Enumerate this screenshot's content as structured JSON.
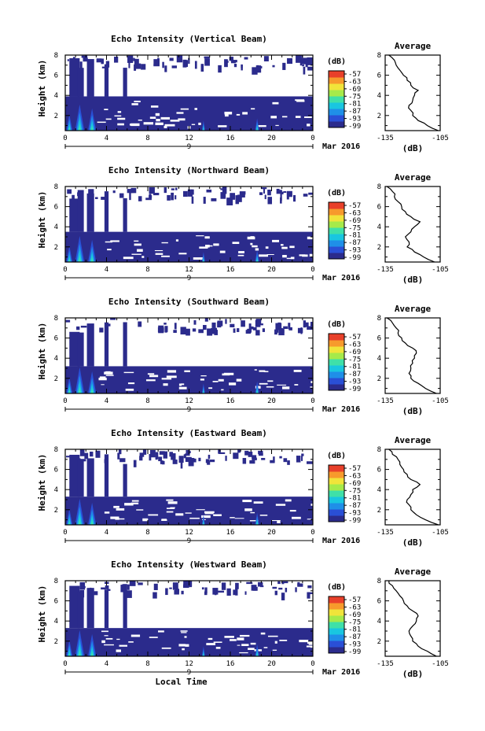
{
  "figure": {
    "xlabel": "Local Time",
    "day_label": "9",
    "month_label": "Mar 2016",
    "ylabel": "Height (km)",
    "unit_label": "(dB)",
    "avg_title": "Average",
    "avg_xlabel": "(dB)"
  },
  "colorbar": {
    "ticks": [
      "-57",
      "-63",
      "-69",
      "-75",
      "-81",
      "-87",
      "-93",
      "-99"
    ],
    "colors": [
      "#2b2b8c",
      "#2a4fd6",
      "#1f8fe8",
      "#19c6e0",
      "#3fe0a8",
      "#a6ea4a",
      "#f1e43a",
      "#f79a2c",
      "#e8402a"
    ]
  },
  "chart_data": [
    {
      "type": "heatmap",
      "title": "Echo Intensity (Vertical Beam)",
      "xlabel": "Local Time",
      "ylabel": "Height (km)",
      "x_ticks": [
        "0",
        "4",
        "8",
        "12",
        "16",
        "20",
        "0"
      ],
      "y_ticks": [
        "2",
        "4",
        "6",
        "8"
      ],
      "xlim": [
        0,
        24
      ],
      "ylim": [
        0.5,
        8
      ],
      "boundary_top_km": 3.9,
      "profile": {
        "title": "Average",
        "xlabel": "(dB)",
        "xlim": [
          -135,
          -105
        ],
        "x_ticks": [
          "-135",
          "-105"
        ],
        "heights_km": [
          0.5,
          1,
          1.5,
          2,
          2.5,
          3,
          3.5,
          4,
          4.5,
          5,
          5.5,
          6,
          6.5,
          7,
          7.5,
          8
        ],
        "values_db": [
          -106,
          -112,
          -117,
          -120,
          -121,
          -122,
          -120,
          -119,
          -117,
          -121,
          -123,
          -125,
          -127,
          -129,
          -130,
          -133
        ]
      }
    },
    {
      "type": "heatmap",
      "title": "Echo Intensity (Northward Beam)",
      "xlabel": "Local Time",
      "ylabel": "Height (km)",
      "x_ticks": [
        "0",
        "4",
        "8",
        "12",
        "16",
        "20",
        "0"
      ],
      "y_ticks": [
        "2",
        "4",
        "6",
        "8"
      ],
      "xlim": [
        0,
        24
      ],
      "ylim": [
        0.5,
        8
      ],
      "boundary_top_km": 3.5,
      "profile": {
        "title": "Average",
        "xlabel": "(dB)",
        "xlim": [
          -135,
          -105
        ],
        "x_ticks": [
          "-135",
          "-105"
        ],
        "heights_km": [
          0.5,
          1,
          1.5,
          2,
          2.5,
          3,
          3.5,
          4,
          4.5,
          5,
          5.5,
          6,
          6.5,
          7,
          7.5,
          8
        ],
        "values_db": [
          -108,
          -114,
          -119,
          -123,
          -122,
          -124,
          -121,
          -119,
          -116,
          -121,
          -124,
          -126,
          -128,
          -130,
          -131,
          -134
        ]
      }
    },
    {
      "type": "heatmap",
      "title": "Echo Intensity (Southward Beam)",
      "xlabel": "Local Time",
      "ylabel": "Height (km)",
      "x_ticks": [
        "0",
        "4",
        "8",
        "12",
        "16",
        "20",
        "0"
      ],
      "y_ticks": [
        "2",
        "4",
        "6",
        "8"
      ],
      "xlim": [
        0,
        24
      ],
      "ylim": [
        0.5,
        8
      ],
      "boundary_top_km": 3.2,
      "profile": {
        "title": "Average",
        "xlabel": "(dB)",
        "xlim": [
          -135,
          -105
        ],
        "x_ticks": [
          "-135",
          "-105"
        ],
        "heights_km": [
          0.5,
          1,
          1.5,
          2,
          2.5,
          3,
          3.5,
          4,
          4.5,
          5,
          5.5,
          6,
          6.5,
          7,
          7.5,
          8
        ],
        "values_db": [
          -107,
          -113,
          -117,
          -121,
          -122,
          -121,
          -120,
          -119,
          -118,
          -120,
          -124,
          -126,
          -128,
          -129,
          -131,
          -134
        ]
      }
    },
    {
      "type": "heatmap",
      "title": "Echo Intensity (Eastward Beam)",
      "xlabel": "Local Time",
      "ylabel": "Height (km)",
      "x_ticks": [
        "0",
        "4",
        "8",
        "12",
        "16",
        "20",
        "0"
      ],
      "y_ticks": [
        "2",
        "4",
        "6",
        "8"
      ],
      "xlim": [
        0,
        24
      ],
      "ylim": [
        0.5,
        8
      ],
      "boundary_top_km": 3.3,
      "profile": {
        "title": "Average",
        "xlabel": "(dB)",
        "xlim": [
          -135,
          -105
        ],
        "x_ticks": [
          "-135",
          "-105"
        ],
        "heights_km": [
          0.5,
          1,
          1.5,
          2,
          2.5,
          3,
          3.5,
          4,
          4.5,
          5,
          5.5,
          6,
          6.5,
          7,
          7.5,
          8
        ],
        "values_db": [
          -106,
          -113,
          -118,
          -121,
          -122,
          -123,
          -121,
          -120,
          -116,
          -121,
          -123,
          -125,
          -127,
          -128,
          -131,
          -133
        ]
      }
    },
    {
      "type": "heatmap",
      "title": "Echo Intensity (Westward Beam)",
      "xlabel": "Local Time",
      "ylabel": "Height (km)",
      "x_ticks": [
        "0",
        "4",
        "8",
        "12",
        "16",
        "20",
        "0"
      ],
      "y_ticks": [
        "2",
        "4",
        "6",
        "8"
      ],
      "xlim": [
        0,
        24
      ],
      "ylim": [
        0.5,
        8
      ],
      "boundary_top_km": 3.3,
      "profile": {
        "title": "Average",
        "xlabel": "(dB)",
        "xlim": [
          -135,
          -105
        ],
        "x_ticks": [
          "-135",
          "-105"
        ],
        "heights_km": [
          0.5,
          1,
          1.5,
          2,
          2.5,
          3,
          3.5,
          4,
          4.5,
          5,
          5.5,
          6,
          6.5,
          7,
          7.5,
          8
        ],
        "values_db": [
          -107,
          -112,
          -117,
          -120,
          -121,
          -122,
          -120,
          -118,
          -117,
          -120,
          -123,
          -125,
          -127,
          -129,
          -131,
          -133
        ]
      }
    }
  ]
}
